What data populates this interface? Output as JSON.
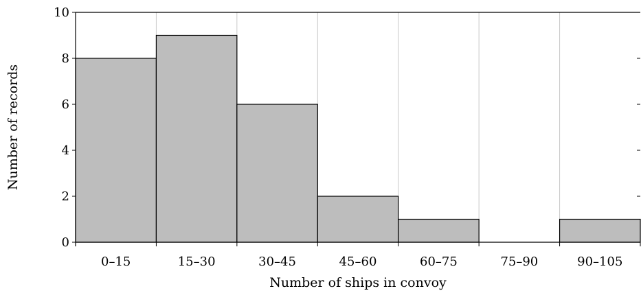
{
  "chart_data": {
    "type": "bar",
    "title": "",
    "xlabel": "Number of ships in convoy",
    "ylabel": "Number of records",
    "categories": [
      "0–15",
      "15–30",
      "30–45",
      "45–60",
      "60–75",
      "75–90",
      "90–105"
    ],
    "values": [
      8,
      9,
      6,
      2,
      1,
      0,
      1
    ],
    "ylim": [
      0,
      10
    ],
    "yticks": [
      0,
      2,
      4,
      6,
      8,
      10
    ],
    "grid": "vertical",
    "bar_color": "#bdbdbd",
    "legend": "none"
  }
}
